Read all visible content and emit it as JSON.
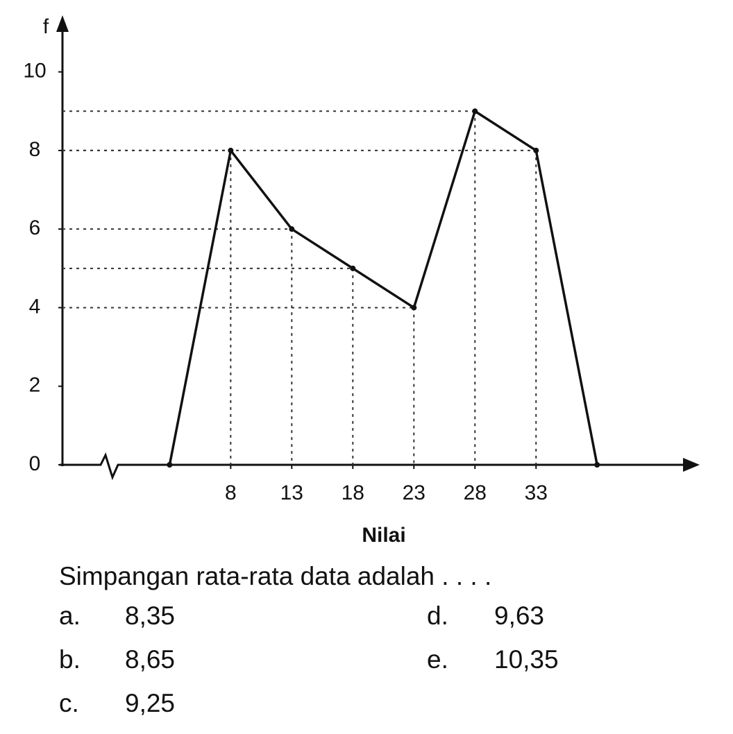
{
  "chart_data": {
    "type": "line",
    "y_label": "f",
    "x_label": "Nilai",
    "x": [
      3,
      8,
      13,
      18,
      23,
      28,
      33,
      38
    ],
    "values": [
      0,
      8,
      6,
      5,
      4,
      9,
      8,
      0
    ],
    "color": "#111111",
    "xlim": [
      -6,
      46
    ],
    "xticks": [
      8,
      13,
      18,
      23,
      28,
      33
    ],
    "ylim": [
      0,
      11.3
    ],
    "yticks": [
      0,
      2,
      4,
      6,
      8,
      10
    ],
    "guides": true
  },
  "question": {
    "text": "Simpangan rata-rata data adalah . . . .",
    "options": [
      {
        "letter": "a.",
        "text": "8,35"
      },
      {
        "letter": "b.",
        "text": "8,65"
      },
      {
        "letter": "c.",
        "text": "9,25"
      },
      {
        "letter": "d.",
        "text": "9,63"
      },
      {
        "letter": "e.",
        "text": "10,35"
      }
    ]
  }
}
